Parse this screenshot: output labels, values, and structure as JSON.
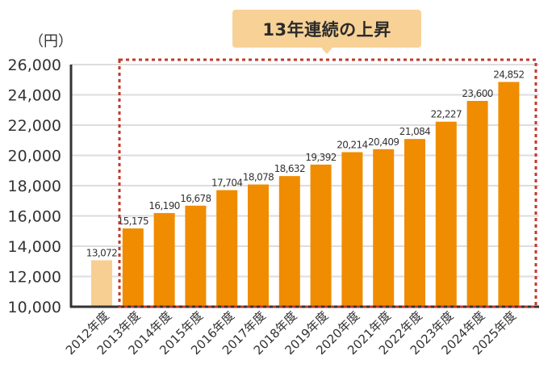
{
  "callout": {
    "text": "13年連続の上昇"
  },
  "chart_data": {
    "type": "bar",
    "title": "",
    "annotation": "13年連続の上昇",
    "unit_label": "（円）",
    "xlabel": "",
    "ylabel": "（円）",
    "ylim": [
      10000,
      26000
    ],
    "yticks": [
      10000,
      12000,
      14000,
      16000,
      18000,
      20000,
      22000,
      24000,
      26000
    ],
    "ytick_labels": [
      "10,000",
      "12,000",
      "14,000",
      "16,000",
      "18,000",
      "20,000",
      "22,000",
      "24,000",
      "26,000"
    ],
    "grid": true,
    "legend": null,
    "categories": [
      "2012年度",
      "2013年度",
      "2014年度",
      "2015年度",
      "2016年度",
      "2017年度",
      "2018年度",
      "2019年度",
      "2020年度",
      "2021年度",
      "2022年度",
      "2023年度",
      "2024年度",
      "2025年度"
    ],
    "values": [
      13072,
      15175,
      16190,
      16678,
      17704,
      18078,
      18632,
      19392,
      20214,
      20409,
      21084,
      22227,
      23600,
      24852
    ],
    "value_labels": [
      "13,072",
      "15,175",
      "16,190",
      "16,678",
      "17,704",
      "18,078",
      "18,632",
      "19,392",
      "20,214",
      "20,409",
      "21,084",
      "22,227",
      "23,600",
      "24,852"
    ],
    "highlight_range": [
      "2013年度",
      "2025年度"
    ],
    "colors": {
      "base_bar": "#f7cf93",
      "bar": "#f08c00",
      "highlight_box": "#c0392b",
      "grid": "#dddddd",
      "axis": "#333333",
      "callout_bg": "#f7d196"
    }
  }
}
